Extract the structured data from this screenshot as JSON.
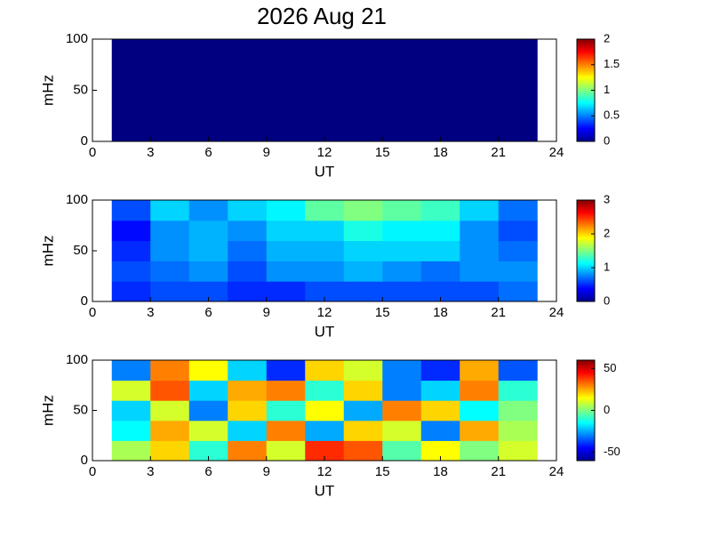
{
  "chart_data": [
    {
      "type": "heatmap",
      "title": "2026 Aug 21",
      "xlabel": "UT",
      "ylabel": "mHz",
      "xbins": [
        1,
        3,
        5,
        7,
        9,
        11,
        13,
        15,
        17,
        19,
        21,
        23
      ],
      "ybins": [
        0,
        20,
        40,
        60,
        80,
        100
      ],
      "values": [
        [
          0,
          0,
          0,
          0,
          0,
          0,
          0,
          0,
          0,
          0,
          0
        ],
        [
          0,
          0,
          0,
          0,
          0,
          0,
          0,
          0,
          0,
          0,
          0
        ],
        [
          0,
          0,
          0,
          0,
          0,
          0,
          0,
          0,
          0,
          0,
          0
        ],
        [
          0,
          0,
          0,
          0,
          0,
          0,
          0,
          0,
          0,
          0,
          0
        ],
        [
          0,
          0,
          0,
          0,
          0,
          0,
          0,
          0,
          0,
          0,
          0
        ]
      ],
      "xlim": [
        0,
        24
      ],
      "xticks": [
        0,
        3,
        6,
        9,
        12,
        15,
        18,
        21,
        24
      ],
      "ylim": [
        0,
        100
      ],
      "yticks": [
        0,
        50,
        100
      ],
      "clim": [
        0,
        2
      ],
      "cticks": [
        0,
        0.5,
        1,
        1.5,
        2
      ],
      "colormap": "jet"
    },
    {
      "type": "heatmap",
      "xlabel": "UT",
      "ylabel": "mHz",
      "xbins": [
        1,
        3,
        5,
        7,
        9,
        11,
        13,
        15,
        17,
        19,
        21,
        23
      ],
      "ybins": [
        0,
        20,
        40,
        60,
        80,
        100
      ],
      "values": [
        [
          0.5,
          0.6,
          0.6,
          0.5,
          0.5,
          0.6,
          0.6,
          0.6,
          0.6,
          0.6,
          0.7
        ],
        [
          0.6,
          0.7,
          0.8,
          0.6,
          0.8,
          0.8,
          0.9,
          0.8,
          0.7,
          0.8,
          0.8
        ],
        [
          0.5,
          0.8,
          0.9,
          0.7,
          0.9,
          0.9,
          1.0,
          1.0,
          1.0,
          0.8,
          0.7
        ],
        [
          0.4,
          0.8,
          0.9,
          0.8,
          1.0,
          1.0,
          1.2,
          1.1,
          1.1,
          0.8,
          0.6
        ],
        [
          0.6,
          1.0,
          0.8,
          1.0,
          1.1,
          1.4,
          1.5,
          1.4,
          1.3,
          1.0,
          0.7
        ]
      ],
      "xlim": [
        0,
        24
      ],
      "xticks": [
        0,
        3,
        6,
        9,
        12,
        15,
        18,
        21,
        24
      ],
      "ylim": [
        0,
        100
      ],
      "yticks": [
        0,
        50,
        100
      ],
      "clim": [
        0,
        3
      ],
      "cticks": [
        0,
        1,
        2,
        3
      ],
      "colormap": "jet"
    },
    {
      "type": "heatmap",
      "xlabel": "UT",
      "ylabel": "mHz",
      "xbins": [
        1,
        3,
        5,
        7,
        9,
        11,
        13,
        15,
        17,
        19,
        21,
        23
      ],
      "ybins": [
        0,
        20,
        40,
        60,
        80,
        100
      ],
      "values": [
        [
          5,
          20,
          -10,
          30,
          10,
          40,
          35,
          -5,
          15,
          0,
          10
        ],
        [
          -15,
          25,
          10,
          -20,
          30,
          -25,
          20,
          10,
          -30,
          25,
          5
        ],
        [
          -20,
          10,
          -30,
          20,
          -10,
          15,
          -25,
          30,
          20,
          -15,
          0
        ],
        [
          10,
          35,
          -20,
          25,
          30,
          -10,
          20,
          -30,
          -20,
          30,
          -10
        ],
        [
          -30,
          30,
          15,
          -20,
          -40,
          20,
          10,
          -30,
          -40,
          25,
          -35
        ]
      ],
      "xlim": [
        0,
        24
      ],
      "xticks": [
        0,
        3,
        6,
        9,
        12,
        15,
        18,
        21,
        24
      ],
      "ylim": [
        0,
        100
      ],
      "yticks": [
        0,
        50,
        100
      ],
      "clim": [
        -60,
        60
      ],
      "cticks": [
        -50,
        0,
        50
      ],
      "colormap": "jet"
    }
  ]
}
